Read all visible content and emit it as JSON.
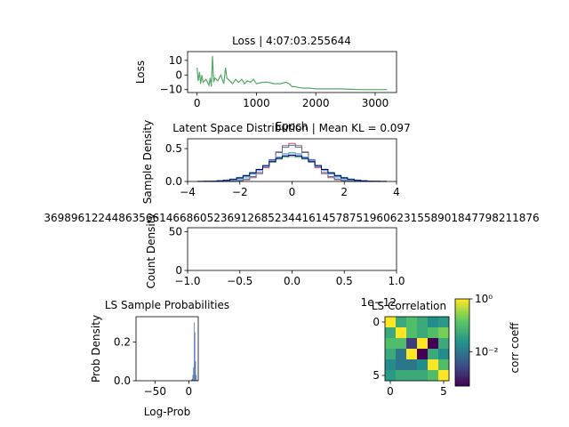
{
  "chart_data": [
    {
      "type": "line",
      "title": "Loss | 4:07:03.255644",
      "xlabel": "Epoch",
      "ylabel": "Loss",
      "xlim": [
        -160,
        3360
      ],
      "ylim": [
        -12,
        16
      ],
      "xticks": [
        "0",
        "1000",
        "2000",
        "3000"
      ],
      "yticks": [
        "10",
        "0",
        "−10"
      ],
      "series": [
        {
          "color": "#55a868",
          "x": [
            0,
            20,
            40,
            60,
            80,
            100,
            150,
            200,
            220,
            240,
            260,
            280,
            300,
            350,
            400,
            450,
            480,
            500,
            550,
            600,
            650,
            700,
            750,
            800,
            850,
            900,
            950,
            1000,
            1100,
            1200,
            1300,
            1400,
            1500,
            1550,
            1600,
            1650,
            1700,
            1800,
            1900,
            2000,
            2100,
            2200,
            2400,
            2600,
            2800,
            3000,
            3200
          ],
          "y": [
            5,
            -4,
            2,
            -6,
            0,
            -5,
            -3,
            -7,
            -2,
            -8,
            13,
            -5,
            -2,
            -4,
            0,
            -6,
            5,
            -2,
            -4,
            -6,
            -3,
            -5,
            -3,
            -6,
            -4,
            -5,
            -3,
            -6,
            -5,
            -5,
            -6,
            -6,
            -5,
            -6,
            -8,
            -8,
            -8.5,
            -9,
            -9,
            -9.5,
            -9.5,
            -9.5,
            -9.5,
            -9.8,
            -10,
            -10,
            -10
          ]
        }
      ]
    },
    {
      "type": "line",
      "title": "Latent Space Distribution | Mean KL = 0.097",
      "ylabel": "Sample Density",
      "xlim": [
        -4,
        4
      ],
      "ylim": [
        0,
        0.65
      ],
      "xticks": [
        "−4",
        "−2",
        "0",
        "2",
        "4"
      ],
      "yticks": [
        "0.0",
        "0.5"
      ],
      "series": [
        {
          "color": "#c44e52",
          "sigma": 0.7,
          "peak": 0.58
        },
        {
          "color": "#4c72b0",
          "sigma": 0.75,
          "peak": 0.55
        },
        {
          "color": "#55a868",
          "sigma": 1.05,
          "peak": 0.38
        },
        {
          "color": "#8da0cb",
          "sigma": 0.95,
          "peak": 0.42
        },
        {
          "color": "#64b5cd",
          "sigma": 0.9,
          "peak": 0.44
        },
        {
          "color": "#000080",
          "sigma": 1.0,
          "peak": 0.4
        }
      ]
    },
    {
      "type": "bar",
      "title": "3698961224486356614668605236912685234416145787519606231558901847798211876",
      "ylabel": "Count Density",
      "xlim": [
        -1,
        1
      ],
      "ylim": [
        0,
        55
      ],
      "xticks": [
        "−1.0",
        "−0.5",
        "0.0",
        "0.5",
        "1.0"
      ],
      "yticks": [
        "0",
        "50"
      ],
      "x_offset_label": "1e−12",
      "values": []
    },
    {
      "type": "bar",
      "title": "LS Sample Probabilities",
      "xlabel": "Log-Prob",
      "ylabel": "Prob Density",
      "xlim": [
        -78,
        14
      ],
      "ylim": [
        0,
        0.33
      ],
      "xticks": [
        "−50",
        "0"
      ],
      "yticks": [
        "0.0",
        "0.2"
      ],
      "color": "#4c72b0",
      "x": [
        4,
        5,
        6,
        7,
        8,
        9,
        10,
        11,
        12
      ],
      "values": [
        0.005,
        0.01,
        0.03,
        0.07,
        0.3,
        0.25,
        0.1,
        0.03,
        0.005
      ]
    },
    {
      "type": "heatmap",
      "title": "LS Correlation",
      "colorbar_label": "corr coeff",
      "colorbar_ticks": [
        "10⁰",
        "10⁻²"
      ],
      "scale": "log",
      "xticks": [
        "0",
        "5"
      ],
      "yticks": [
        "0",
        "5"
      ],
      "matrix": [
        [
          1.0,
          0.05,
          0.1,
          0.05,
          0.02,
          0.03
        ],
        [
          0.05,
          1.0,
          0.1,
          0.05,
          0.1,
          0.2
        ],
        [
          0.1,
          0.1,
          0.002,
          1.0,
          0.0005,
          0.05
        ],
        [
          0.05,
          0.01,
          1.0,
          0.0005,
          0.05,
          0.02
        ],
        [
          0.02,
          0.01,
          0.01,
          0.02,
          1.0,
          0.1
        ],
        [
          0.03,
          0.05,
          0.05,
          0.05,
          0.1,
          1.0
        ]
      ]
    }
  ]
}
